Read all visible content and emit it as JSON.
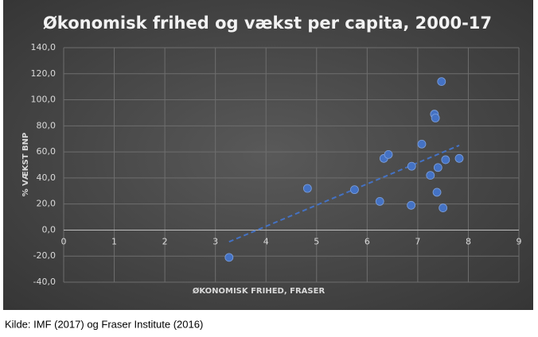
{
  "chart_data": {
    "type": "scatter",
    "title": "Økonomisk frihed og vækst per capita, 2000-17",
    "x_label": "ØKONOMISK FRIHED, FRASER",
    "y_label": "% VÆKST BNP",
    "source": "Kilde: IMF (2017) og Fraser Institute (2016)",
    "x": [
      3.27,
      4.82,
      5.75,
      6.25,
      6.33,
      6.42,
      6.87,
      6.88,
      7.08,
      7.25,
      7.33,
      7.35,
      7.38,
      7.4,
      7.47,
      7.5,
      7.55,
      7.82
    ],
    "y": [
      -21,
      32,
      31,
      22,
      55,
      58,
      19,
      49,
      66,
      42,
      89,
      86,
      29,
      48,
      114,
      17,
      54,
      55
    ],
    "color": "#4472c4",
    "trendline": {
      "x": [
        3.27,
        7.82
      ],
      "y": [
        -9,
        65
      ]
    },
    "xlim": [
      0,
      9
    ],
    "xticks": [
      0,
      1,
      2,
      3,
      4,
      5,
      6,
      7,
      8,
      9
    ],
    "ylim": [
      -40,
      140
    ],
    "yticks": [
      {
        "value": -40,
        "label": "-40,0"
      },
      {
        "value": -20,
        "label": "-20,0"
      },
      {
        "value": 0,
        "label": "0,0"
      },
      {
        "value": 20,
        "label": "20,0"
      },
      {
        "value": 40,
        "label": "40,0"
      },
      {
        "value": 60,
        "label": "60,0"
      },
      {
        "value": 80,
        "label": "80,0"
      },
      {
        "value": 100,
        "label": "100,0"
      },
      {
        "value": 120,
        "label": "120,0"
      },
      {
        "value": 140,
        "label": "140,0"
      }
    ],
    "grid": true
  }
}
